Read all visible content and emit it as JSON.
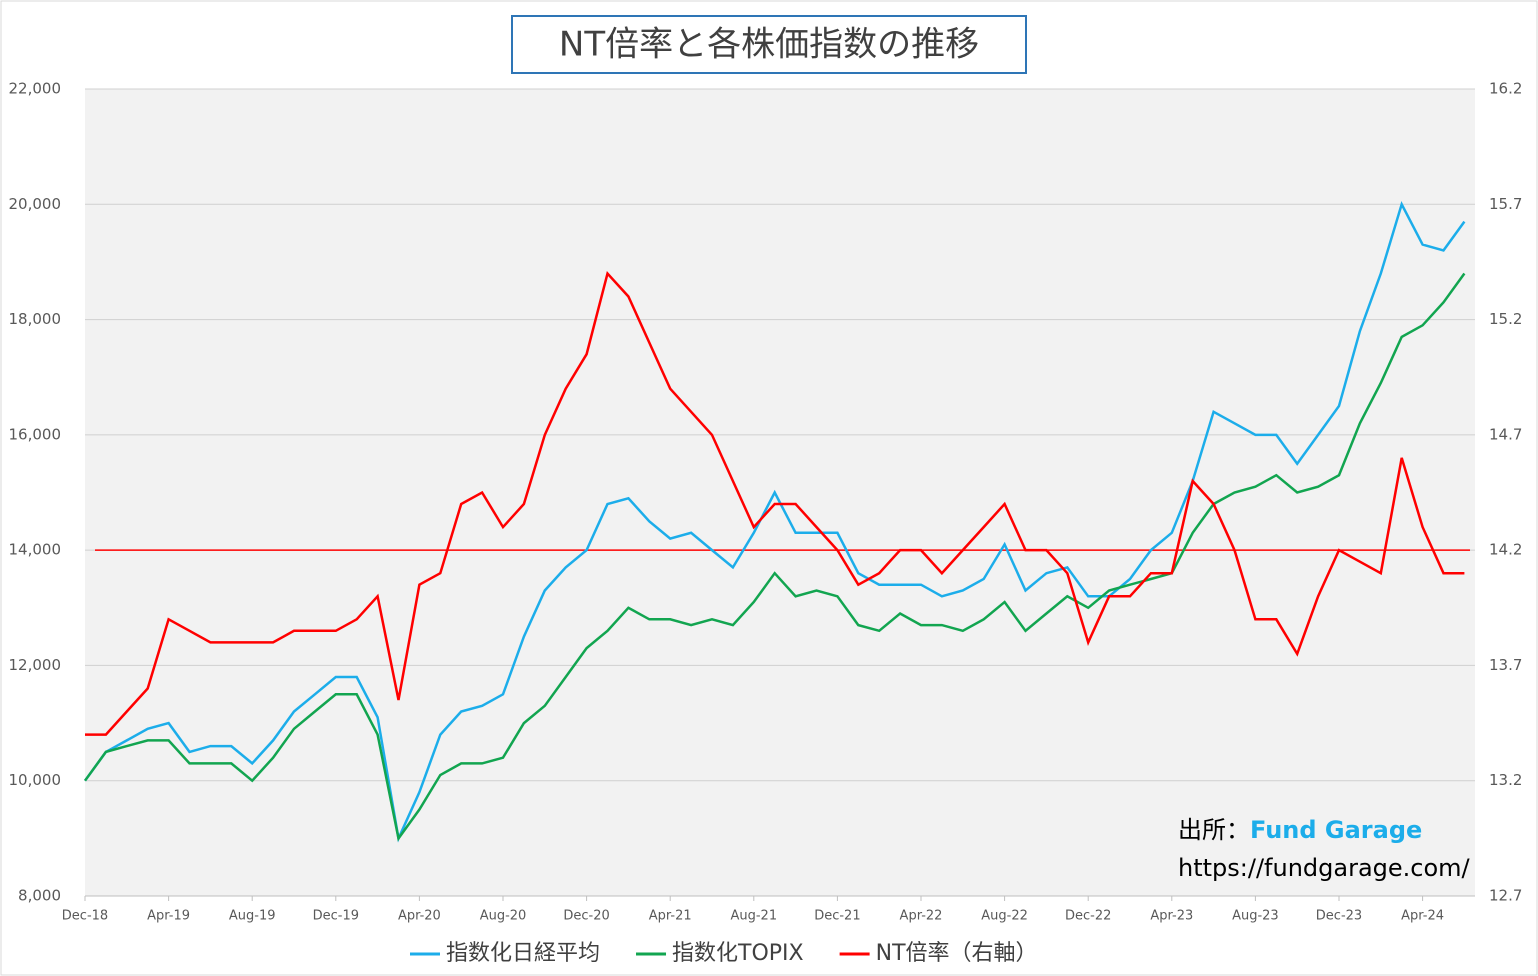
{
  "chart_data": {
    "type": "line",
    "title": "NT倍率と各株価指数の推移",
    "categories": [
      "Dec-18",
      null,
      null,
      null,
      "Apr-19",
      null,
      null,
      null,
      "Aug-19",
      null,
      null,
      null,
      "Dec-19",
      null,
      null,
      null,
      "Apr-20",
      null,
      null,
      null,
      "Aug-20",
      null,
      null,
      null,
      "Dec-20",
      null,
      null,
      null,
      "Apr-21",
      null,
      null,
      null,
      "Aug-21",
      null,
      null,
      null,
      "Dec-21",
      null,
      null,
      null,
      "Apr-22",
      null,
      null,
      null,
      "Aug-22",
      null,
      null,
      null,
      "Dec-22",
      null,
      null,
      null,
      "Apr-23",
      null,
      null,
      null,
      "Aug-23",
      null,
      null,
      null,
      "Dec-23",
      null,
      null,
      null,
      "Apr-24",
      null,
      null
    ],
    "series": [
      {
        "name": "指数化日経平均",
        "color": "#1cadea",
        "values": [
          10000,
          10500,
          10700,
          10900,
          11000,
          10500,
          10600,
          10600,
          10300,
          10700,
          11200,
          11500,
          11800,
          11800,
          11100,
          9000,
          9800,
          10800,
          11200,
          11300,
          11500,
          12500,
          13300,
          13700,
          14000,
          14800,
          14900,
          14500,
          14200,
          14300,
          14000,
          13700,
          14300,
          15000,
          14300,
          14300,
          14300,
          13600,
          13400,
          13400,
          13400,
          13200,
          13300,
          13500,
          14100,
          13300,
          13600,
          13700,
          13200,
          13200,
          13500,
          14000,
          14300,
          15200,
          16400,
          16200,
          16000,
          16000,
          15500,
          16000,
          16500,
          17800,
          18800,
          20000,
          19300,
          19200,
          19700
        ]
      },
      {
        "name": "指数化TOPIX",
        "color": "#12a550",
        "values": [
          10000,
          10500,
          10600,
          10700,
          10700,
          10300,
          10300,
          10300,
          10000,
          10400,
          10900,
          11200,
          11500,
          11500,
          10800,
          9000,
          9500,
          10100,
          10300,
          10300,
          10400,
          11000,
          11300,
          11800,
          12300,
          12600,
          13000,
          12800,
          12800,
          12700,
          12800,
          12700,
          13100,
          13600,
          13200,
          13300,
          13200,
          12700,
          12600,
          12900,
          12700,
          12700,
          12600,
          12800,
          13100,
          12600,
          12900,
          13200,
          13000,
          13300,
          13400,
          13500,
          13600,
          14300,
          14800,
          15000,
          15100,
          15300,
          15000,
          15100,
          15300,
          16200,
          16900,
          17700,
          17900,
          18300,
          18800
        ]
      },
      {
        "name": "NT倍率（右軸）",
        "color": "#ff0000",
        "axis": "y2",
        "values": [
          13.4,
          13.4,
          13.5,
          13.6,
          13.9,
          13.85,
          13.8,
          13.8,
          13.8,
          13.8,
          13.85,
          13.85,
          13.85,
          13.9,
          14.0,
          13.55,
          14.05,
          14.1,
          14.4,
          14.45,
          14.3,
          14.4,
          14.7,
          14.9,
          15.05,
          15.4,
          15.3,
          15.1,
          14.9,
          14.8,
          14.7,
          14.5,
          14.3,
          14.4,
          14.4,
          14.3,
          14.2,
          14.05,
          14.1,
          14.2,
          14.2,
          14.1,
          14.2,
          14.3,
          14.4,
          14.2,
          14.2,
          14.1,
          13.8,
          14.0,
          14.0,
          14.1,
          14.1,
          14.5,
          14.4,
          14.2,
          13.9,
          13.9,
          13.75,
          14.0,
          14.2,
          14.15,
          14.1,
          14.6,
          14.3,
          14.1,
          14.1
        ]
      }
    ],
    "reference_lines": [
      {
        "axis": "y2",
        "value": 14.2,
        "color": "#ff0000"
      }
    ],
    "ylim": [
      8000,
      22000
    ],
    "yticks": [
      {
        "value": 8000,
        "label": "8,000"
      },
      {
        "value": 10000,
        "label": "10,000"
      },
      {
        "value": 12000,
        "label": "12,000"
      },
      {
        "value": 14000,
        "label": "14,000"
      },
      {
        "value": 16000,
        "label": "16,000"
      },
      {
        "value": 18000,
        "label": "18,000"
      },
      {
        "value": 20000,
        "label": "20,000"
      },
      {
        "value": 22000,
        "label": "22,000"
      }
    ],
    "y2lim": [
      12.7,
      16.2
    ],
    "y2ticks": [
      12.7,
      13.2,
      13.7,
      14.2,
      14.7,
      15.2,
      15.7,
      16.2
    ],
    "grid": true,
    "legend": "bottom",
    "annotations": [
      "出所：",
      "Fund Garage",
      "https://fundgarage.com/"
    ]
  }
}
